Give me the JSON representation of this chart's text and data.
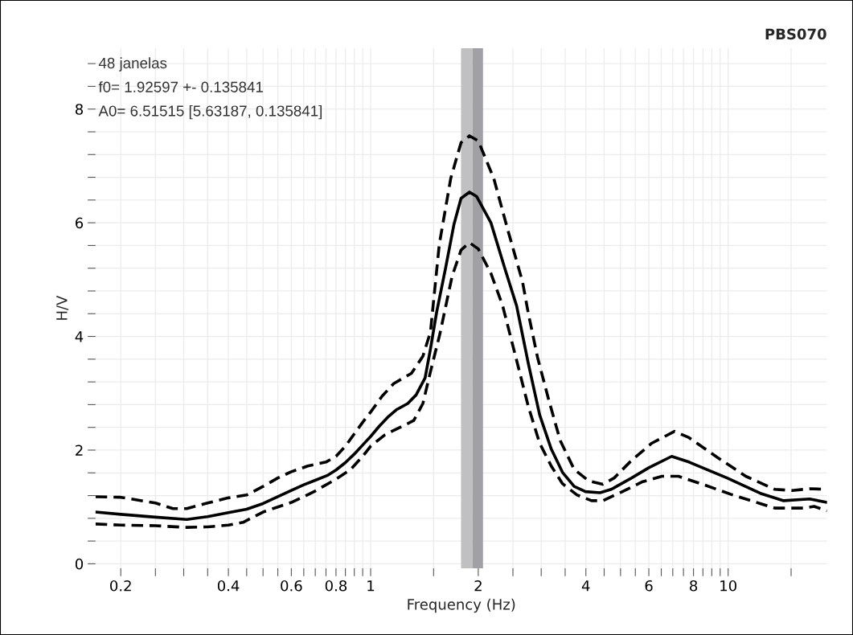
{
  "chart_data": {
    "type": "line",
    "title": "PBS070",
    "xlabel": "Frequency (Hz)",
    "ylabel": "H/V",
    "annotations": [
      "48 janelas",
      "f0= 1.92597 +- 0.135841",
      "A0= 6.51515 [5.63187, 0.135841]"
    ],
    "log": "x",
    "grid": true,
    "xlim": [
      0.17,
      18.9
    ],
    "ylim": [
      -0.08,
      9.07
    ],
    "xticks": [
      0.2,
      {
        "value": 0.25,
        "label": null
      },
      {
        "value": 0.3,
        "label": null
      },
      {
        "value": 0.35,
        "label": null
      },
      0.4,
      {
        "value": 0.45,
        "label": null
      },
      {
        "value": 0.5,
        "label": null
      },
      {
        "value": 0.55,
        "label": null
      },
      0.6,
      {
        "value": 0.65,
        "label": null
      },
      {
        "value": 0.7,
        "label": null
      },
      {
        "value": 0.75,
        "label": null
      },
      0.8,
      {
        "value": 0.85,
        "label": null
      },
      {
        "value": 0.9,
        "label": null
      },
      {
        "value": 0.95,
        "label": null
      },
      1,
      {
        "value": 1.5,
        "label": null
      },
      2,
      {
        "value": 2.5,
        "label": null
      },
      {
        "value": 3,
        "label": null
      },
      {
        "value": 3.5,
        "label": null
      },
      4,
      {
        "value": 4.5,
        "label": null
      },
      {
        "value": 5,
        "label": null
      },
      {
        "value": 5.5,
        "label": null
      },
      6,
      {
        "value": 6.5,
        "label": null
      },
      {
        "value": 7,
        "label": null
      },
      {
        "value": 7.5,
        "label": null
      },
      8,
      {
        "value": 8.5,
        "label": null
      },
      {
        "value": 9,
        "label": null
      },
      {
        "value": 9.5,
        "label": null
      },
      10,
      {
        "value": 15,
        "label": null
      }
    ],
    "yticks": [
      0,
      {
        "value": 0.4,
        "label": null
      },
      {
        "value": 0.8,
        "label": null
      },
      {
        "value": 1.2,
        "label": null
      },
      {
        "value": 1.6,
        "label": null
      },
      2,
      {
        "value": 2.4,
        "label": null
      },
      {
        "value": 2.8,
        "label": null
      },
      {
        "value": 3.2,
        "label": null
      },
      {
        "value": 3.6,
        "label": null
      },
      4,
      {
        "value": 4.4,
        "label": null
      },
      {
        "value": 4.8,
        "label": null
      },
      {
        "value": 5.2,
        "label": null
      },
      {
        "value": 5.6,
        "label": null
      },
      6,
      {
        "value": 6.4,
        "label": null
      },
      {
        "value": 6.8,
        "label": null
      },
      {
        "value": 7.2,
        "label": null
      },
      {
        "value": 7.6,
        "label": null
      },
      8,
      {
        "value": 8.4,
        "label": null
      },
      {
        "value": 8.8,
        "label": null
      }
    ],
    "bands": [
      {
        "axis": "x",
        "from": 1.79,
        "to": 1.926,
        "color": "#c0c0c0"
      },
      {
        "axis": "x",
        "from": 1.926,
        "to": 2.062,
        "color": "#a0a0a5"
      }
    ],
    "series": [
      {
        "color": "#000000",
        "line_style": "solid",
        "x": [
          0.17,
          0.2,
          0.25,
          0.306,
          0.35,
          0.4,
          0.45,
          0.5,
          0.55,
          0.6,
          0.65,
          0.7,
          0.76,
          0.8,
          0.85,
          0.9,
          0.95,
          1.0,
          1.057,
          1.117,
          1.18,
          1.27,
          1.34,
          1.42,
          1.47,
          1.53,
          1.62,
          1.71,
          1.79,
          1.89,
          1.98,
          2.17,
          2.38,
          2.56,
          2.76,
          2.97,
          3.2,
          3.44,
          3.71,
          3.99,
          4.38,
          4.71,
          5.37,
          6.0,
          6.95,
          7.77,
          9.93,
          12.3,
          14.3,
          16.9,
          18.9
        ],
        "values": [
          0.91,
          0.87,
          0.82,
          0.78,
          0.83,
          0.9,
          0.96,
          1.06,
          1.18,
          1.29,
          1.39,
          1.47,
          1.56,
          1.65,
          1.78,
          1.93,
          2.09,
          2.24,
          2.42,
          2.58,
          2.71,
          2.82,
          2.97,
          3.27,
          3.78,
          4.43,
          5.2,
          5.97,
          6.43,
          6.54,
          6.46,
          6.0,
          5.17,
          4.54,
          3.53,
          2.62,
          2.02,
          1.61,
          1.36,
          1.27,
          1.25,
          1.31,
          1.51,
          1.69,
          1.89,
          1.79,
          1.51,
          1.24,
          1.11,
          1.14,
          1.08
        ]
      },
      {
        "color": "#000000",
        "line_style": "dashed",
        "x": [
          0.17,
          0.2,
          0.25,
          0.28,
          0.306,
          0.35,
          0.4,
          0.45,
          0.5,
          0.55,
          0.6,
          0.667,
          0.75,
          0.8,
          0.85,
          0.95,
          1.0,
          1.077,
          1.16,
          1.3,
          1.4,
          1.47,
          1.556,
          1.675,
          1.79,
          1.89,
          2.0,
          2.21,
          2.42,
          2.66,
          2.76,
          2.93,
          3.15,
          3.39,
          3.71,
          4.07,
          4.46,
          4.8,
          5.37,
          6.11,
          7.08,
          7.77,
          9.34,
          11.2,
          13.5,
          15.1,
          16.9,
          18.9
        ],
        "values": [
          1.18,
          1.17,
          1.07,
          0.97,
          0.97,
          1.07,
          1.16,
          1.21,
          1.36,
          1.51,
          1.62,
          1.72,
          1.79,
          1.89,
          2.07,
          2.49,
          2.67,
          2.95,
          3.17,
          3.35,
          3.65,
          4.08,
          5.62,
          6.78,
          7.41,
          7.53,
          7.44,
          6.78,
          5.87,
          4.96,
          4.41,
          3.63,
          2.88,
          2.17,
          1.66,
          1.46,
          1.4,
          1.51,
          1.82,
          2.12,
          2.33,
          2.22,
          1.87,
          1.54,
          1.31,
          1.29,
          1.32,
          1.31
        ]
      },
      {
        "color": "#000000",
        "line_style": "dashed",
        "x": [
          0.17,
          0.2,
          0.25,
          0.306,
          0.35,
          0.4,
          0.44,
          0.5,
          0.55,
          0.6,
          0.65,
          0.7,
          0.8,
          0.876,
          0.95,
          1.0,
          1.097,
          1.18,
          1.32,
          1.4,
          1.47,
          1.56,
          1.69,
          1.79,
          1.89,
          2.0,
          2.17,
          2.34,
          2.56,
          2.76,
          2.97,
          3.2,
          3.44,
          3.78,
          4.15,
          4.46,
          5.02,
          5.74,
          6.53,
          7.26,
          8.56,
          10.2,
          12.3,
          13.5,
          16.3,
          17.4,
          18.9
        ],
        "values": [
          0.7,
          0.68,
          0.67,
          0.64,
          0.65,
          0.68,
          0.73,
          0.91,
          1.0,
          1.08,
          1.18,
          1.28,
          1.49,
          1.65,
          1.89,
          2.07,
          2.27,
          2.37,
          2.52,
          2.82,
          3.38,
          4.03,
          5.06,
          5.52,
          5.65,
          5.54,
          5.11,
          4.54,
          3.58,
          2.77,
          2.12,
          1.72,
          1.41,
          1.21,
          1.11,
          1.11,
          1.26,
          1.44,
          1.54,
          1.54,
          1.39,
          1.22,
          1.06,
          0.98,
          0.98,
          1.01,
          0.93
        ]
      }
    ]
  }
}
